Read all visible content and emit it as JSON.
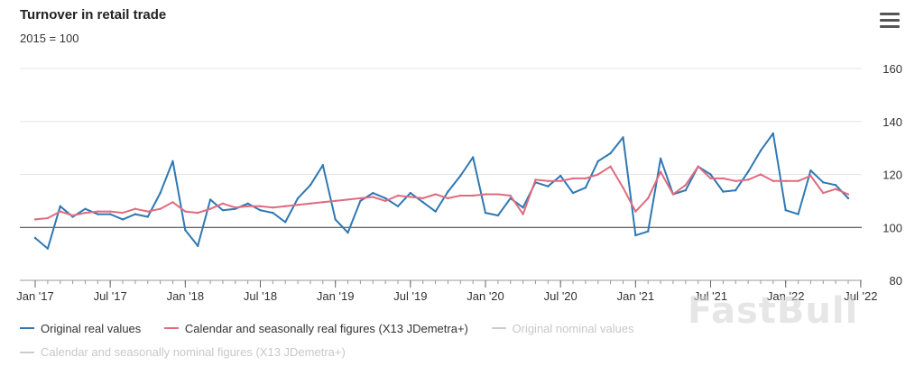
{
  "header": {
    "title": "Turnover in retail trade",
    "subtitle": "2015 = 100",
    "menu_icon": "hamburger-menu-icon"
  },
  "watermark": "FastBull",
  "colors": {
    "original_real": "#2f78b3",
    "calendar_seasonal_real": "#e06b7f",
    "hidden_series": "#cccccc",
    "grid": "#e6e6e6",
    "baseline": "#333333"
  },
  "chart_data": {
    "type": "line",
    "title": "Turnover in retail trade",
    "subtitle": "2015 = 100",
    "xlabel": "",
    "ylabel": "",
    "y_axis_position": "right",
    "ylim": [
      80,
      160
    ],
    "yticks": [
      80,
      100,
      120,
      140,
      160
    ],
    "reference_line": 100,
    "grid": true,
    "x_tick_labels": [
      "Jan '17",
      "Jul '17",
      "Jan '18",
      "Jul '18",
      "Jan '19",
      "Jul '19",
      "Jan '20",
      "Jul '20",
      "Jan '21",
      "Jul '21",
      "Jan '22",
      "Jul '22"
    ],
    "x_tick_month_index": [
      0,
      6,
      12,
      18,
      24,
      30,
      36,
      42,
      48,
      54,
      60,
      66
    ],
    "x_start": "Jan '17",
    "months_count": 66,
    "legend_position": "bottom-left",
    "series": [
      {
        "name": "Original real values",
        "color": "#2f78b3",
        "visible": true,
        "values": [
          96,
          92,
          108,
          104,
          107,
          105,
          105,
          103,
          105,
          104,
          113,
          125,
          99,
          93,
          110.5,
          106.5,
          107,
          109,
          106.5,
          105.5,
          102,
          111,
          116,
          123.5,
          103,
          98,
          110,
          113,
          111,
          108,
          113,
          109.5,
          106,
          113.5,
          119.5,
          126.5,
          105.5,
          104.5,
          111,
          107.5,
          117,
          115.5,
          119.5,
          113,
          115,
          125,
          128,
          134,
          97,
          98.5,
          126,
          112.5,
          114,
          123,
          120,
          113.5,
          114,
          121,
          129,
          135.5,
          106.5,
          105,
          121.5,
          117,
          116,
          111
        ]
      },
      {
        "name": "Calendar and seasonally real figures (X13 JDemetra+)",
        "color": "#e06b7f",
        "visible": true,
        "values": [
          103,
          103.5,
          106,
          104.5,
          105.5,
          106,
          106,
          105.5,
          107,
          106,
          107,
          109.5,
          106,
          105.5,
          107,
          109,
          107.5,
          108,
          108,
          107.5,
          108,
          108.5,
          109,
          109.5,
          110,
          110.5,
          111,
          111.5,
          110,
          112,
          111.5,
          111,
          112.5,
          111,
          112,
          112,
          112.5,
          112.5,
          112,
          105,
          118,
          117.5,
          117.5,
          118.5,
          118.5,
          120,
          123,
          115,
          106,
          111,
          121,
          112.5,
          116,
          123,
          118.5,
          118.5,
          117.5,
          118,
          120,
          117.5,
          117.5,
          117.5,
          119.5,
          113,
          114.5,
          112.5
        ]
      },
      {
        "name": "Original nominal values",
        "color": "#cccccc",
        "visible": false,
        "values": []
      },
      {
        "name": "Calendar and seasonally nominal figures (X13 JDemetra+)",
        "color": "#cccccc",
        "visible": false,
        "values": []
      }
    ]
  }
}
